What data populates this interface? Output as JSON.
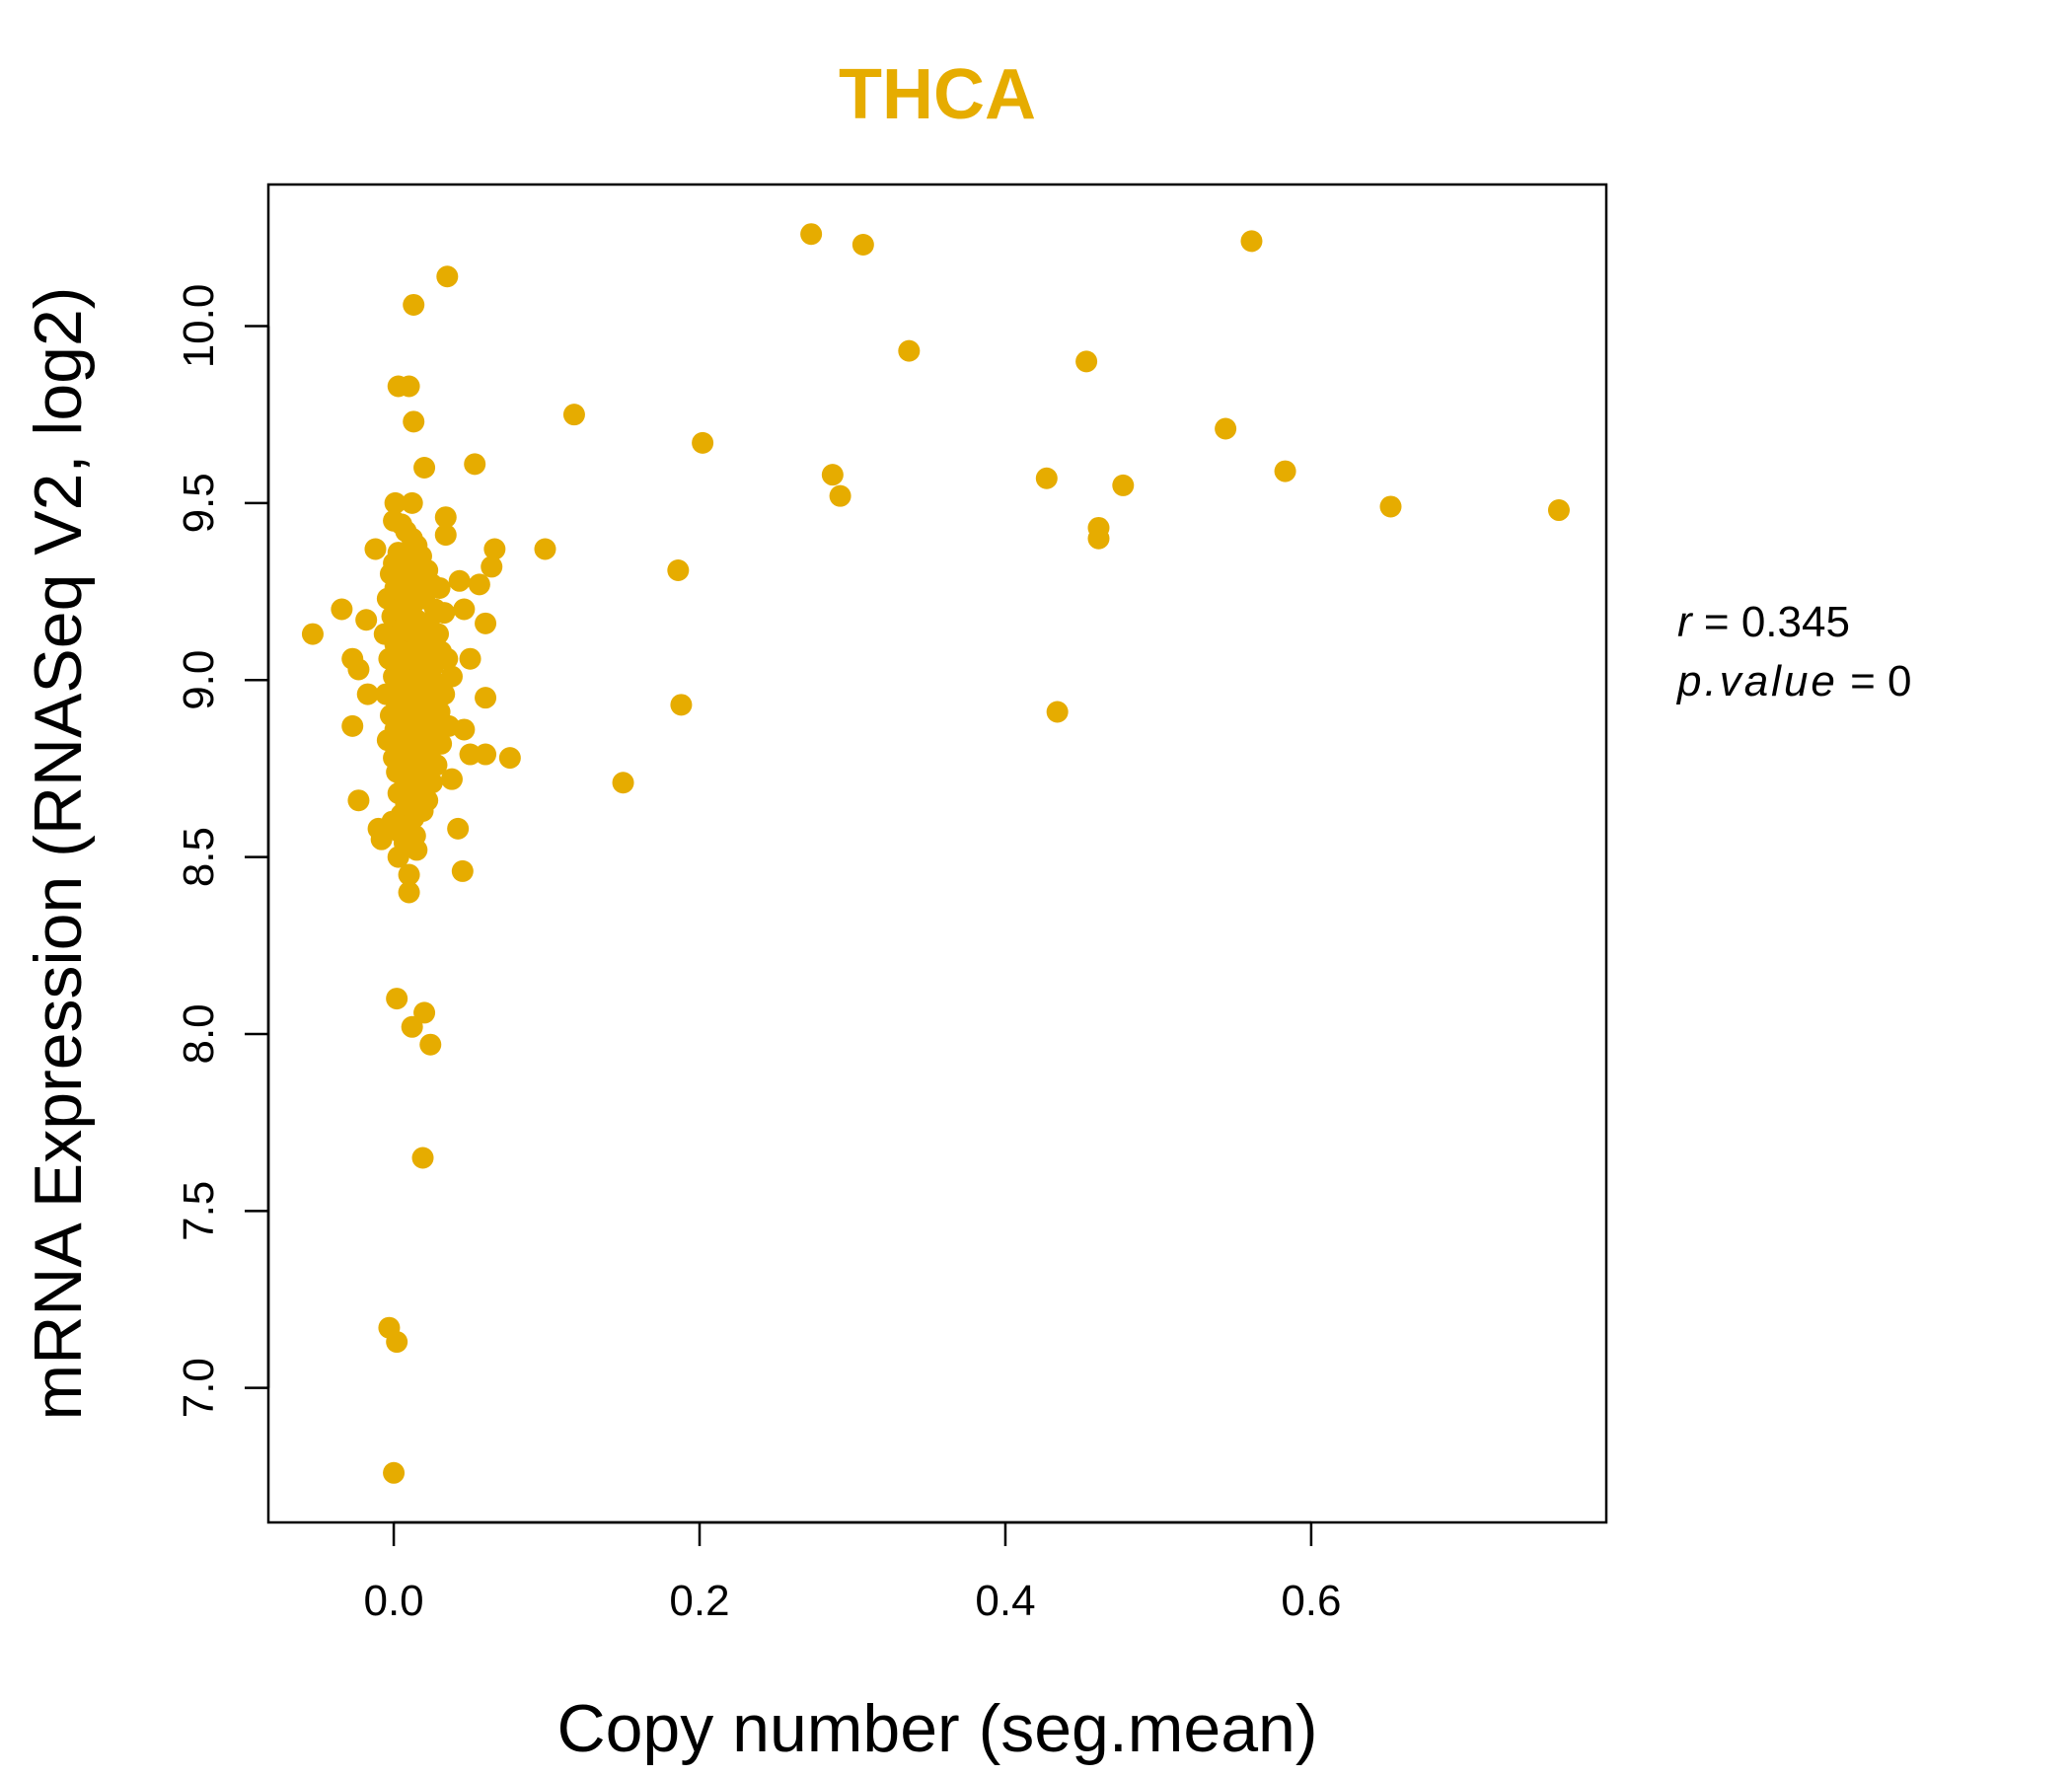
{
  "colors": {
    "point": "#E6AC00",
    "title": "#E6AC00",
    "axis": "#000000"
  },
  "chart_data": {
    "type": "scatter",
    "title": "THCA",
    "xlabel": "Copy number (seg.mean)",
    "ylabel": "mRNA Expression (RNASeq V2, log2)",
    "xlim": [
      -0.082,
      0.793
    ],
    "ylim": [
      6.62,
      10.4
    ],
    "xticks": [
      0.0,
      0.2,
      0.4,
      0.6
    ],
    "xtick_labels": [
      "0.0",
      "0.2",
      "0.4",
      "0.6"
    ],
    "yticks": [
      7.0,
      7.5,
      8.0,
      8.5,
      9.0,
      9.5,
      10.0
    ],
    "ytick_labels": [
      "7.0",
      "7.5",
      "8.0",
      "8.5",
      "9.0",
      "9.5",
      "10.0"
    ],
    "annotations": {
      "r": "0.345",
      "p_value": "0"
    },
    "points": [
      [
        0.273,
        10.26
      ],
      [
        0.307,
        10.23
      ],
      [
        0.561,
        10.24
      ],
      [
        0.035,
        10.14
      ],
      [
        0.013,
        10.06
      ],
      [
        0.337,
        9.93
      ],
      [
        0.453,
        9.9
      ],
      [
        0.003,
        9.83
      ],
      [
        0.01,
        9.83
      ],
      [
        0.118,
        9.75
      ],
      [
        0.013,
        9.73
      ],
      [
        0.202,
        9.67
      ],
      [
        0.544,
        9.71
      ],
      [
        0.02,
        9.6
      ],
      [
        0.053,
        9.61
      ],
      [
        0.287,
        9.58
      ],
      [
        0.427,
        9.57
      ],
      [
        0.583,
        9.59
      ],
      [
        0.477,
        9.55
      ],
      [
        0.292,
        9.52
      ],
      [
        0.652,
        9.49
      ],
      [
        0.762,
        9.48
      ],
      [
        0.461,
        9.43
      ],
      [
        0.461,
        9.4
      ],
      [
        0.034,
        9.46
      ],
      [
        0.034,
        9.41
      ],
      [
        0.001,
        9.5
      ],
      [
        0.012,
        9.5
      ],
      [
        -0.012,
        9.37
      ],
      [
        0.066,
        9.37
      ],
      [
        0.099,
        9.37
      ],
      [
        0.186,
        9.31
      ],
      [
        0.064,
        9.32
      ],
      [
        0.043,
        9.28
      ],
      [
        0.056,
        9.27
      ],
      [
        -0.034,
        9.2
      ],
      [
        0.046,
        9.2
      ],
      [
        0.06,
        9.16
      ],
      [
        -0.018,
        9.17
      ],
      [
        -0.053,
        9.13
      ],
      [
        -0.027,
        9.06
      ],
      [
        -0.023,
        9.03
      ],
      [
        0.05,
        9.06
      ],
      [
        -0.017,
        8.96
      ],
      [
        0.06,
        8.95
      ],
      [
        0.188,
        8.93
      ],
      [
        0.434,
        8.91
      ],
      [
        -0.027,
        8.87
      ],
      [
        0.046,
        8.86
      ],
      [
        0.05,
        8.79
      ],
      [
        0.06,
        8.79
      ],
      [
        0.076,
        8.78
      ],
      [
        0.038,
        8.72
      ],
      [
        0.15,
        8.71
      ],
      [
        -0.023,
        8.66
      ],
      [
        0.042,
        8.58
      ],
      [
        -0.01,
        8.58
      ],
      [
        -0.008,
        8.55
      ],
      [
        0.045,
        8.46
      ],
      [
        0.01,
        8.45
      ],
      [
        0.01,
        8.4
      ],
      [
        0.003,
        8.5
      ],
      [
        0.015,
        8.52
      ],
      [
        0.002,
        8.1
      ],
      [
        0.02,
        8.06
      ],
      [
        0.012,
        8.02
      ],
      [
        0.024,
        7.97
      ],
      [
        0.019,
        7.65
      ],
      [
        -0.003,
        7.17
      ],
      [
        0.002,
        7.13
      ],
      [
        0.0,
        6.76
      ],
      [
        0.0,
        9.45
      ],
      [
        0.005,
        9.44
      ],
      [
        0.008,
        9.42
      ],
      [
        0.012,
        9.4
      ],
      [
        0.015,
        9.38
      ],
      [
        0.003,
        9.36
      ],
      [
        0.018,
        9.35
      ],
      [
        0.0,
        9.33
      ],
      [
        0.01,
        9.32
      ],
      [
        0.022,
        9.31
      ],
      [
        -0.002,
        9.3
      ],
      [
        0.006,
        9.29
      ],
      [
        0.014,
        9.28
      ],
      [
        0.025,
        9.27
      ],
      [
        0.03,
        9.26
      ],
      [
        0.001,
        9.26
      ],
      [
        0.009,
        9.25
      ],
      [
        0.017,
        9.24
      ],
      [
        0.02,
        9.23
      ],
      [
        -0.004,
        9.23
      ],
      [
        0.004,
        9.22
      ],
      [
        0.012,
        9.21
      ],
      [
        0.027,
        9.2
      ],
      [
        0.033,
        9.19
      ],
      [
        0.007,
        9.19
      ],
      [
        -0.001,
        9.18
      ],
      [
        0.015,
        9.17
      ],
      [
        0.023,
        9.16
      ],
      [
        0.011,
        9.15
      ],
      [
        0.003,
        9.14
      ],
      [
        0.019,
        9.14
      ],
      [
        0.029,
        9.13
      ],
      [
        -0.006,
        9.13
      ],
      [
        0.008,
        9.12
      ],
      [
        0.016,
        9.11
      ],
      [
        0.024,
        9.1
      ],
      [
        0.001,
        9.1
      ],
      [
        0.013,
        9.09
      ],
      [
        0.031,
        9.08
      ],
      [
        0.006,
        9.08
      ],
      [
        0.02,
        9.07
      ],
      [
        0.035,
        9.06
      ],
      [
        -0.003,
        9.06
      ],
      [
        0.01,
        9.05
      ],
      [
        0.017,
        9.04
      ],
      [
        0.026,
        9.04
      ],
      [
        0.004,
        9.03
      ],
      [
        0.012,
        9.02
      ],
      [
        0.022,
        9.02
      ],
      [
        0.038,
        9.01
      ],
      [
        0.0,
        9.01
      ],
      [
        0.008,
        9.0
      ],
      [
        0.015,
        8.99
      ],
      [
        0.028,
        8.99
      ],
      [
        0.002,
        8.98
      ],
      [
        0.018,
        8.98
      ],
      [
        0.011,
        8.97
      ],
      [
        0.033,
        8.96
      ],
      [
        -0.005,
        8.96
      ],
      [
        0.006,
        8.95
      ],
      [
        0.021,
        8.95
      ],
      [
        0.014,
        8.94
      ],
      [
        0.025,
        8.93
      ],
      [
        0.003,
        8.93
      ],
      [
        0.009,
        8.92
      ],
      [
        0.03,
        8.91
      ],
      [
        0.017,
        8.91
      ],
      [
        -0.002,
        8.9
      ],
      [
        0.012,
        8.89
      ],
      [
        0.023,
        8.89
      ],
      [
        0.005,
        8.88
      ],
      [
        0.019,
        8.87
      ],
      [
        0.036,
        8.87
      ],
      [
        0.001,
        8.86
      ],
      [
        0.014,
        8.86
      ],
      [
        0.027,
        8.85
      ],
      [
        0.008,
        8.84
      ],
      [
        0.02,
        8.84
      ],
      [
        -0.004,
        8.83
      ],
      [
        0.011,
        8.82
      ],
      [
        0.031,
        8.82
      ],
      [
        0.004,
        8.81
      ],
      [
        0.016,
        8.8
      ],
      [
        0.024,
        8.8
      ],
      [
        0.009,
        8.79
      ],
      [
        0.0,
        8.78
      ],
      [
        0.018,
        8.78
      ],
      [
        0.013,
        8.77
      ],
      [
        0.028,
        8.76
      ],
      [
        0.006,
        8.76
      ],
      [
        0.021,
        8.75
      ],
      [
        0.002,
        8.74
      ],
      [
        0.015,
        8.73
      ],
      [
        0.01,
        8.72
      ],
      [
        0.025,
        8.71
      ],
      [
        0.007,
        8.7
      ],
      [
        0.017,
        8.69
      ],
      [
        0.003,
        8.68
      ],
      [
        0.012,
        8.67
      ],
      [
        0.022,
        8.66
      ],
      [
        0.008,
        8.65
      ],
      [
        0.016,
        8.64
      ],
      [
        0.005,
        8.62
      ],
      [
        0.013,
        8.61
      ],
      [
        0.019,
        8.63
      ],
      [
        0.01,
        8.59
      ],
      [
        0.004,
        8.57
      ],
      [
        0.014,
        8.56
      ],
      [
        -0.001,
        8.6
      ],
      [
        0.007,
        8.54
      ],
      [
        0.005,
        9.05
      ],
      [
        0.01,
        9.15
      ],
      [
        0.015,
        8.85
      ],
      [
        0.02,
        9.0
      ],
      [
        0.0,
        8.95
      ],
      [
        0.012,
        9.25
      ],
      [
        0.018,
        8.7
      ],
      [
        0.008,
        9.35
      ],
      [
        0.022,
        8.9
      ],
      [
        0.003,
        9.2
      ]
    ]
  }
}
